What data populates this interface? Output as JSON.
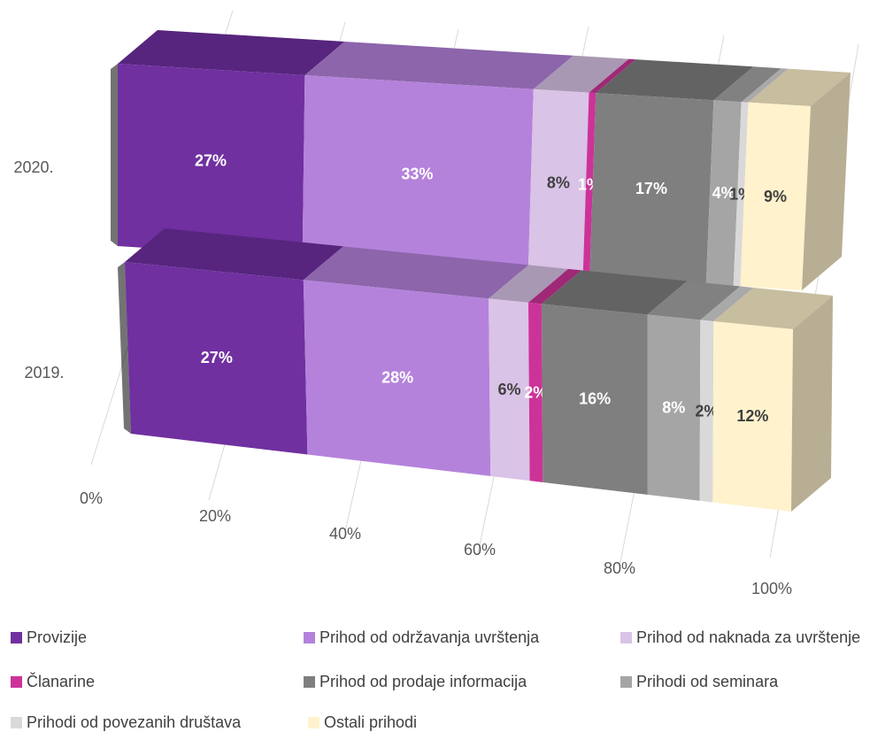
{
  "chart_data": {
    "type": "bar",
    "orientation": "horizontal",
    "stacked": "100%",
    "style": "3d",
    "categories": [
      "2020.",
      "2019."
    ],
    "x_ticks": [
      "0%",
      "20%",
      "40%",
      "60%",
      "80%",
      "100%"
    ],
    "xlim": [
      0,
      100
    ],
    "legend_position": "bottom",
    "series": [
      {
        "name": "Provizije",
        "color": "#7030A0",
        "values": [
          27,
          27
        ],
        "labels": [
          "27%",
          "27%"
        ]
      },
      {
        "name": "Prihod od održavanja uvrštenja",
        "color": "#B482DB",
        "values": [
          33,
          28
        ],
        "labels": [
          "33%",
          "28%"
        ]
      },
      {
        "name": "Prihod od naknada za uvrštenje",
        "color": "#D9C3E6",
        "values": [
          8,
          6
        ],
        "labels": [
          "8%",
          "6%"
        ]
      },
      {
        "name": "Članarine",
        "color": "#CC3399",
        "values": [
          1,
          2
        ],
        "labels": [
          "1%",
          "2%"
        ]
      },
      {
        "name": "Prihod od prodaje informacija",
        "color": "#7F7F7F",
        "values": [
          17,
          16
        ],
        "labels": [
          "17%",
          "16%"
        ]
      },
      {
        "name": "Prihodi od seminara",
        "color": "#A5A5A5",
        "values": [
          4,
          8
        ],
        "labels": [
          "4%",
          "8%"
        ]
      },
      {
        "name": "Prihodi od povezanih društava",
        "color": "#D9D9D9",
        "values": [
          1,
          2
        ],
        "labels": [
          "1%",
          "2%"
        ]
      },
      {
        "name": "Ostali prihodi",
        "color": "#FFF2CC",
        "values": [
          9,
          12
        ],
        "labels": [
          "9%",
          "12%"
        ]
      }
    ]
  }
}
